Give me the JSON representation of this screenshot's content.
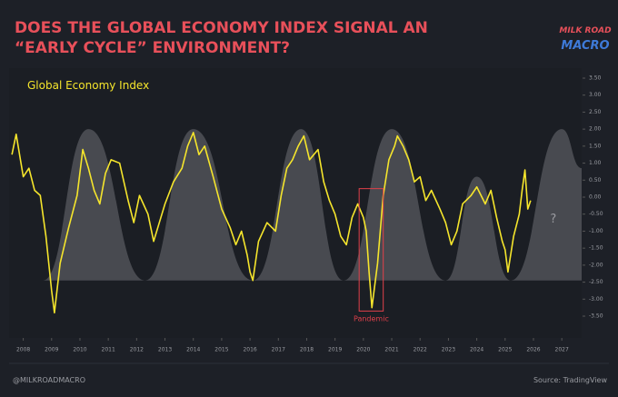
{
  "chart_data": {
    "type": "line",
    "title": [
      "DOES THE GLOBAL ECONOMY INDEX SIGNAL AN",
      "“EARLY CYCLE” ENVIRONMENT?"
    ],
    "logo": [
      "MILK ROAD",
      "MACRO"
    ],
    "footer_left": "@MILKROADMACRO",
    "footer_right": "Source: TradingView",
    "xlim": [
      2007.5,
      2027.7
    ],
    "xticks": [
      2008,
      2009,
      2010,
      2011,
      2012,
      2013,
      2014,
      2015,
      2016,
      2017,
      2018,
      2019,
      2020,
      2021,
      2022,
      2023,
      2024,
      2025,
      2026,
      2027
    ],
    "ylim": [
      -3.7,
      3.7
    ],
    "yticks": [
      {
        "value": 3.5,
        "label": "3.50"
      },
      {
        "value": 3,
        "label": "3.00"
      },
      {
        "value": 2.5,
        "label": "2.50"
      },
      {
        "value": 2,
        "label": "2.00"
      },
      {
        "value": 1.5,
        "label": "1.50"
      },
      {
        "value": 1,
        "label": "1.00"
      },
      {
        "value": 0.5,
        "label": "0.50"
      },
      {
        "value": 0,
        "label": "0.00"
      },
      {
        "value": -0.5,
        "label": "-0.50"
      },
      {
        "value": -1,
        "label": "-1.00"
      },
      {
        "value": -1.5,
        "label": "-1.50"
      },
      {
        "value": -2,
        "label": "-2.00"
      },
      {
        "value": -2.5,
        "label": "-2.50"
      },
      {
        "value": -3,
        "label": "-3.00"
      },
      {
        "value": -3.5,
        "label": "-3.50"
      }
    ],
    "series": [
      {
        "type": "area",
        "color": "#6e6f74",
        "baseline": -2.45,
        "x": [
          2008.7,
          2010.3,
          2012.3,
          2014.0,
          2016.1,
          2017.8,
          2019.3,
          2021.0,
          2022.9,
          2024.0,
          2025.2,
          2027.0,
          2027.7
        ],
        "values": [
          -2.45,
          2.0,
          -2.45,
          2.0,
          -2.45,
          2.0,
          -2.45,
          2.0,
          -2.45,
          0.6,
          -2.45,
          2.0,
          0.85
        ]
      },
      {
        "name": "Global Economy Index",
        "type": "line",
        "color": "#f5e52c",
        "x": [
          2007.6,
          2007.75,
          2007.9,
          2008.0,
          2008.2,
          2008.4,
          2008.6,
          2008.8,
          2009.0,
          2009.1,
          2009.3,
          2009.6,
          2009.9,
          2010.1,
          2010.3,
          2010.5,
          2010.7,
          2010.9,
          2011.1,
          2011.4,
          2011.7,
          2011.9,
          2012.1,
          2012.4,
          2012.6,
          2012.8,
          2013.0,
          2013.3,
          2013.6,
          2013.8,
          2014.0,
          2014.2,
          2014.4,
          2014.7,
          2015.0,
          2015.3,
          2015.5,
          2015.7,
          2015.9,
          2016.0,
          2016.1,
          2016.3,
          2016.6,
          2016.9,
          2017.1,
          2017.3,
          2017.5,
          2017.7,
          2017.9,
          2018.1,
          2018.4,
          2018.6,
          2018.8,
          2019.0,
          2019.2,
          2019.4,
          2019.6,
          2019.8,
          2020.0,
          2020.1,
          2020.2,
          2020.3,
          2020.5,
          2020.7,
          2020.9,
          2021.1,
          2021.2,
          2021.4,
          2021.6,
          2021.8,
          2022.0,
          2022.2,
          2022.4,
          2022.7,
          2022.9,
          2023.1,
          2023.3,
          2023.5,
          2023.8,
          2024.0,
          2024.3,
          2024.5,
          2024.7,
          2024.9,
          2025.0,
          2025.1,
          2025.3,
          2025.5,
          2025.6,
          2025.7,
          2025.8,
          2025.9
        ],
        "values": [
          1.25,
          1.85,
          1.1,
          0.6,
          0.85,
          0.2,
          0.05,
          -1.15,
          -2.75,
          -3.4,
          -1.95,
          -0.9,
          0.05,
          1.4,
          0.85,
          0.2,
          -0.2,
          0.7,
          1.1,
          1.0,
          -0.1,
          -0.75,
          0.05,
          -0.5,
          -1.3,
          -0.75,
          -0.2,
          0.45,
          0.85,
          1.5,
          1.9,
          1.25,
          1.5,
          0.6,
          -0.35,
          -0.9,
          -1.4,
          -1.0,
          -1.7,
          -2.2,
          -2.45,
          -1.3,
          -0.75,
          -1.0,
          0.05,
          0.85,
          1.1,
          1.5,
          1.8,
          1.1,
          1.4,
          0.45,
          -0.1,
          -0.5,
          -1.15,
          -1.4,
          -0.6,
          -0.2,
          -0.6,
          -1.0,
          -2.2,
          -3.25,
          -1.95,
          0.05,
          1.1,
          1.5,
          1.8,
          1.5,
          1.1,
          0.45,
          0.6,
          -0.1,
          0.2,
          -0.35,
          -0.75,
          -1.4,
          -1.0,
          -0.2,
          0.05,
          0.3,
          -0.2,
          0.2,
          -0.6,
          -1.3,
          -1.55,
          -2.2,
          -1.15,
          -0.5,
          0.2,
          0.8,
          -0.35,
          -0.1
        ]
      }
    ],
    "annotations": [
      {
        "text": "Pandemic",
        "x": [
          2019.85,
          2020.7
        ],
        "y": [
          0.25,
          -3.35
        ],
        "color": "#e0404a"
      },
      {
        "text": "?",
        "x": 2026.7,
        "y": -0.65,
        "color": "#9a9ba0"
      }
    ]
  }
}
